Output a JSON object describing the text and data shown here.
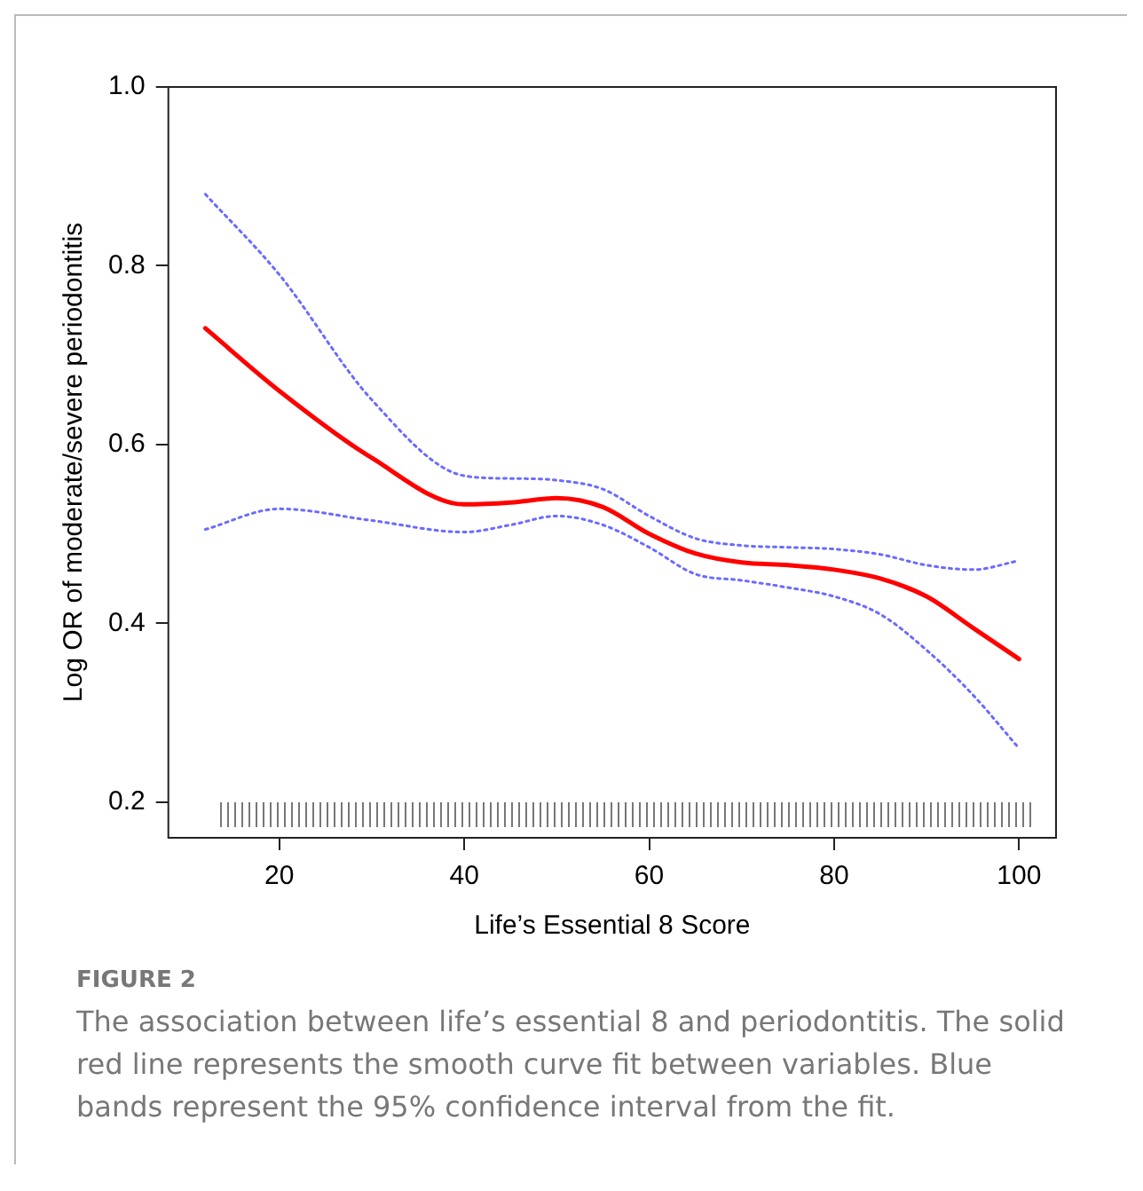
{
  "chart_data": {
    "type": "line",
    "xlabel": "Life’s Essential 8 Score",
    "ylabel": "Log OR of moderate/severe periodontitis",
    "x": [
      12,
      20,
      30,
      40,
      45,
      50,
      55,
      60,
      65,
      70,
      75,
      80,
      85,
      90,
      95,
      100
    ],
    "series": [
      {
        "color": "#ff0000",
        "line_style": "solid",
        "values": [
          0.73,
          0.66,
          0.585,
          0.533,
          0.535,
          0.54,
          0.53,
          0.5,
          0.478,
          0.468,
          0.465,
          0.46,
          0.45,
          0.43,
          0.395,
          0.36
        ]
      },
      {
        "color": "#6b6bff",
        "line_style": "dotted",
        "values": [
          0.88,
          0.79,
          0.65,
          0.565,
          0.562,
          0.56,
          0.55,
          0.52,
          0.495,
          0.487,
          0.485,
          0.483,
          0.477,
          0.465,
          0.46,
          0.47
        ]
      },
      {
        "color": "#6b6bff",
        "line_style": "dotted",
        "values": [
          0.505,
          0.528,
          0.515,
          0.502,
          0.51,
          0.52,
          0.51,
          0.485,
          0.455,
          0.448,
          0.44,
          0.43,
          0.41,
          0.37,
          0.32,
          0.26
        ]
      }
    ],
    "xlim": [
      8,
      104
    ],
    "ylim": [
      0.16,
      1.0
    ],
    "xticks": [
      20,
      40,
      60,
      80,
      100
    ],
    "yticks": [
      0.2,
      0.4,
      0.6,
      0.8,
      {
        "value": 1,
        "label": "1.0"
      }
    ],
    "grid": false,
    "legend": false,
    "marker": "none",
    "annotations": [
      "FIGURE 2",
      "The association between life’s essential 8 and periodontitis. The solid red line represents the smooth curve fit between variables. Blue bands represent the 95% confidence interval from the fit."
    ]
  }
}
